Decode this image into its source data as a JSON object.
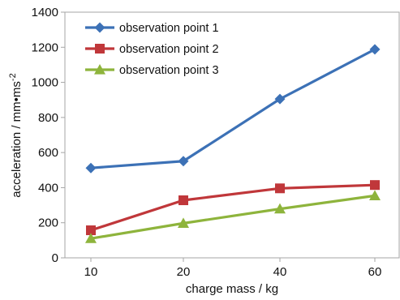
{
  "chart_data": {
    "type": "line",
    "categories": [
      "10",
      "20",
      "40",
      "60"
    ],
    "series": [
      {
        "name": "observation point 1",
        "values": [
          512,
          551,
          905,
          1188
        ],
        "color": "#3c71b6",
        "marker": "diamond"
      },
      {
        "name": "observation point 2",
        "values": [
          157,
          328,
          396,
          415
        ],
        "color": "#c0373a",
        "marker": "square"
      },
      {
        "name": "observation point 3",
        "values": [
          110,
          197,
          279,
          354
        ],
        "color": "#8eb43c",
        "marker": "triangle"
      }
    ],
    "xlabel": "charge mass / kg",
    "ylabel_main": "acceleration / mm•ms",
    "ylabel_sup": "-2",
    "ylim": [
      0,
      1400
    ],
    "yticks": [
      "0",
      "200",
      "400",
      "600",
      "800",
      "1000",
      "1200",
      "1400"
    ],
    "grid": false,
    "legend_position": "top-left"
  }
}
